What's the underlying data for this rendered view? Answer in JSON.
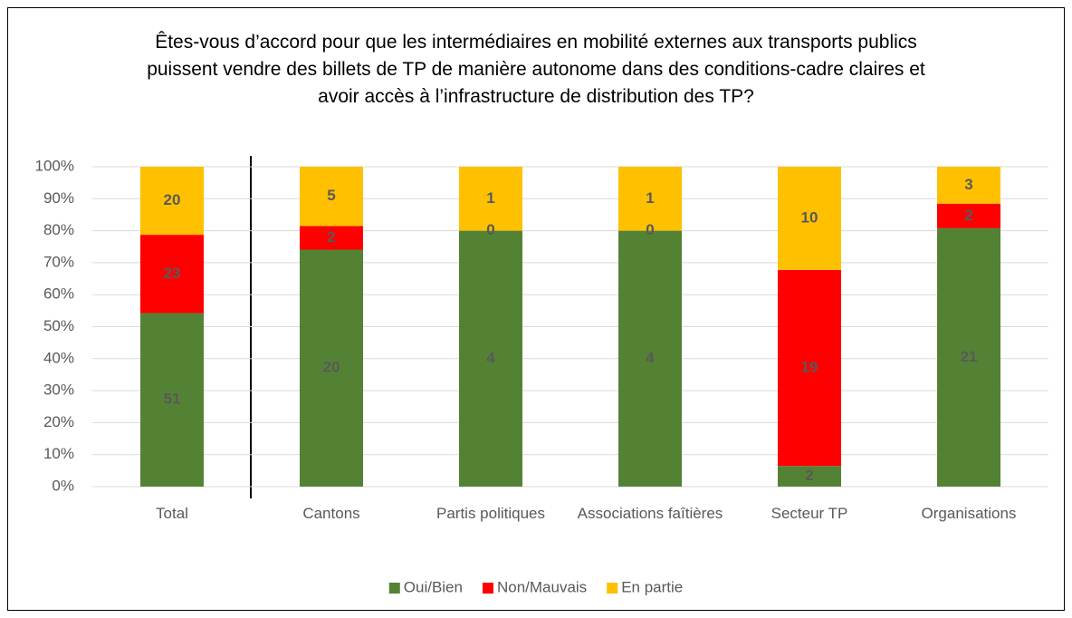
{
  "chart_data": {
    "type": "bar",
    "stacking": "percent",
    "title": "Êtes-vous d’accord pour que les intermédiaires en mobilité externes aux transports publics puissent vendre des billets de TP de manière autonome dans des conditions-cadre claires et avoir accès à l’infrastructure de distribution des TP?",
    "categories": [
      "Total",
      "Cantons",
      "Partis politiques",
      "Associations faîtières",
      "Secteur TP",
      "Organisations"
    ],
    "series": [
      {
        "name": "Oui/Bien",
        "color": "#548235",
        "values": [
          51,
          20,
          4,
          4,
          2,
          21
        ]
      },
      {
        "name": "Non/Mauvais",
        "color": "#ff0000",
        "values": [
          23,
          2,
          0,
          0,
          19,
          2
        ]
      },
      {
        "name": "En partie",
        "color": "#ffc000",
        "values": [
          20,
          5,
          1,
          1,
          10,
          3
        ]
      }
    ],
    "ylim": [
      0,
      100
    ],
    "yticks": [
      {
        "value": 0,
        "label": "0%"
      },
      {
        "value": 10,
        "label": "10%"
      },
      {
        "value": 20,
        "label": "20%"
      },
      {
        "value": 30,
        "label": "30%"
      },
      {
        "value": 40,
        "label": "40%"
      },
      {
        "value": 50,
        "label": "50%"
      },
      {
        "value": 60,
        "label": "60%"
      },
      {
        "value": 70,
        "label": "70%"
      },
      {
        "value": 80,
        "label": "80%"
      },
      {
        "value": 90,
        "label": "90%"
      },
      {
        "value": 100,
        "label": "100%"
      }
    ],
    "grid": true,
    "legend": "bottom"
  }
}
